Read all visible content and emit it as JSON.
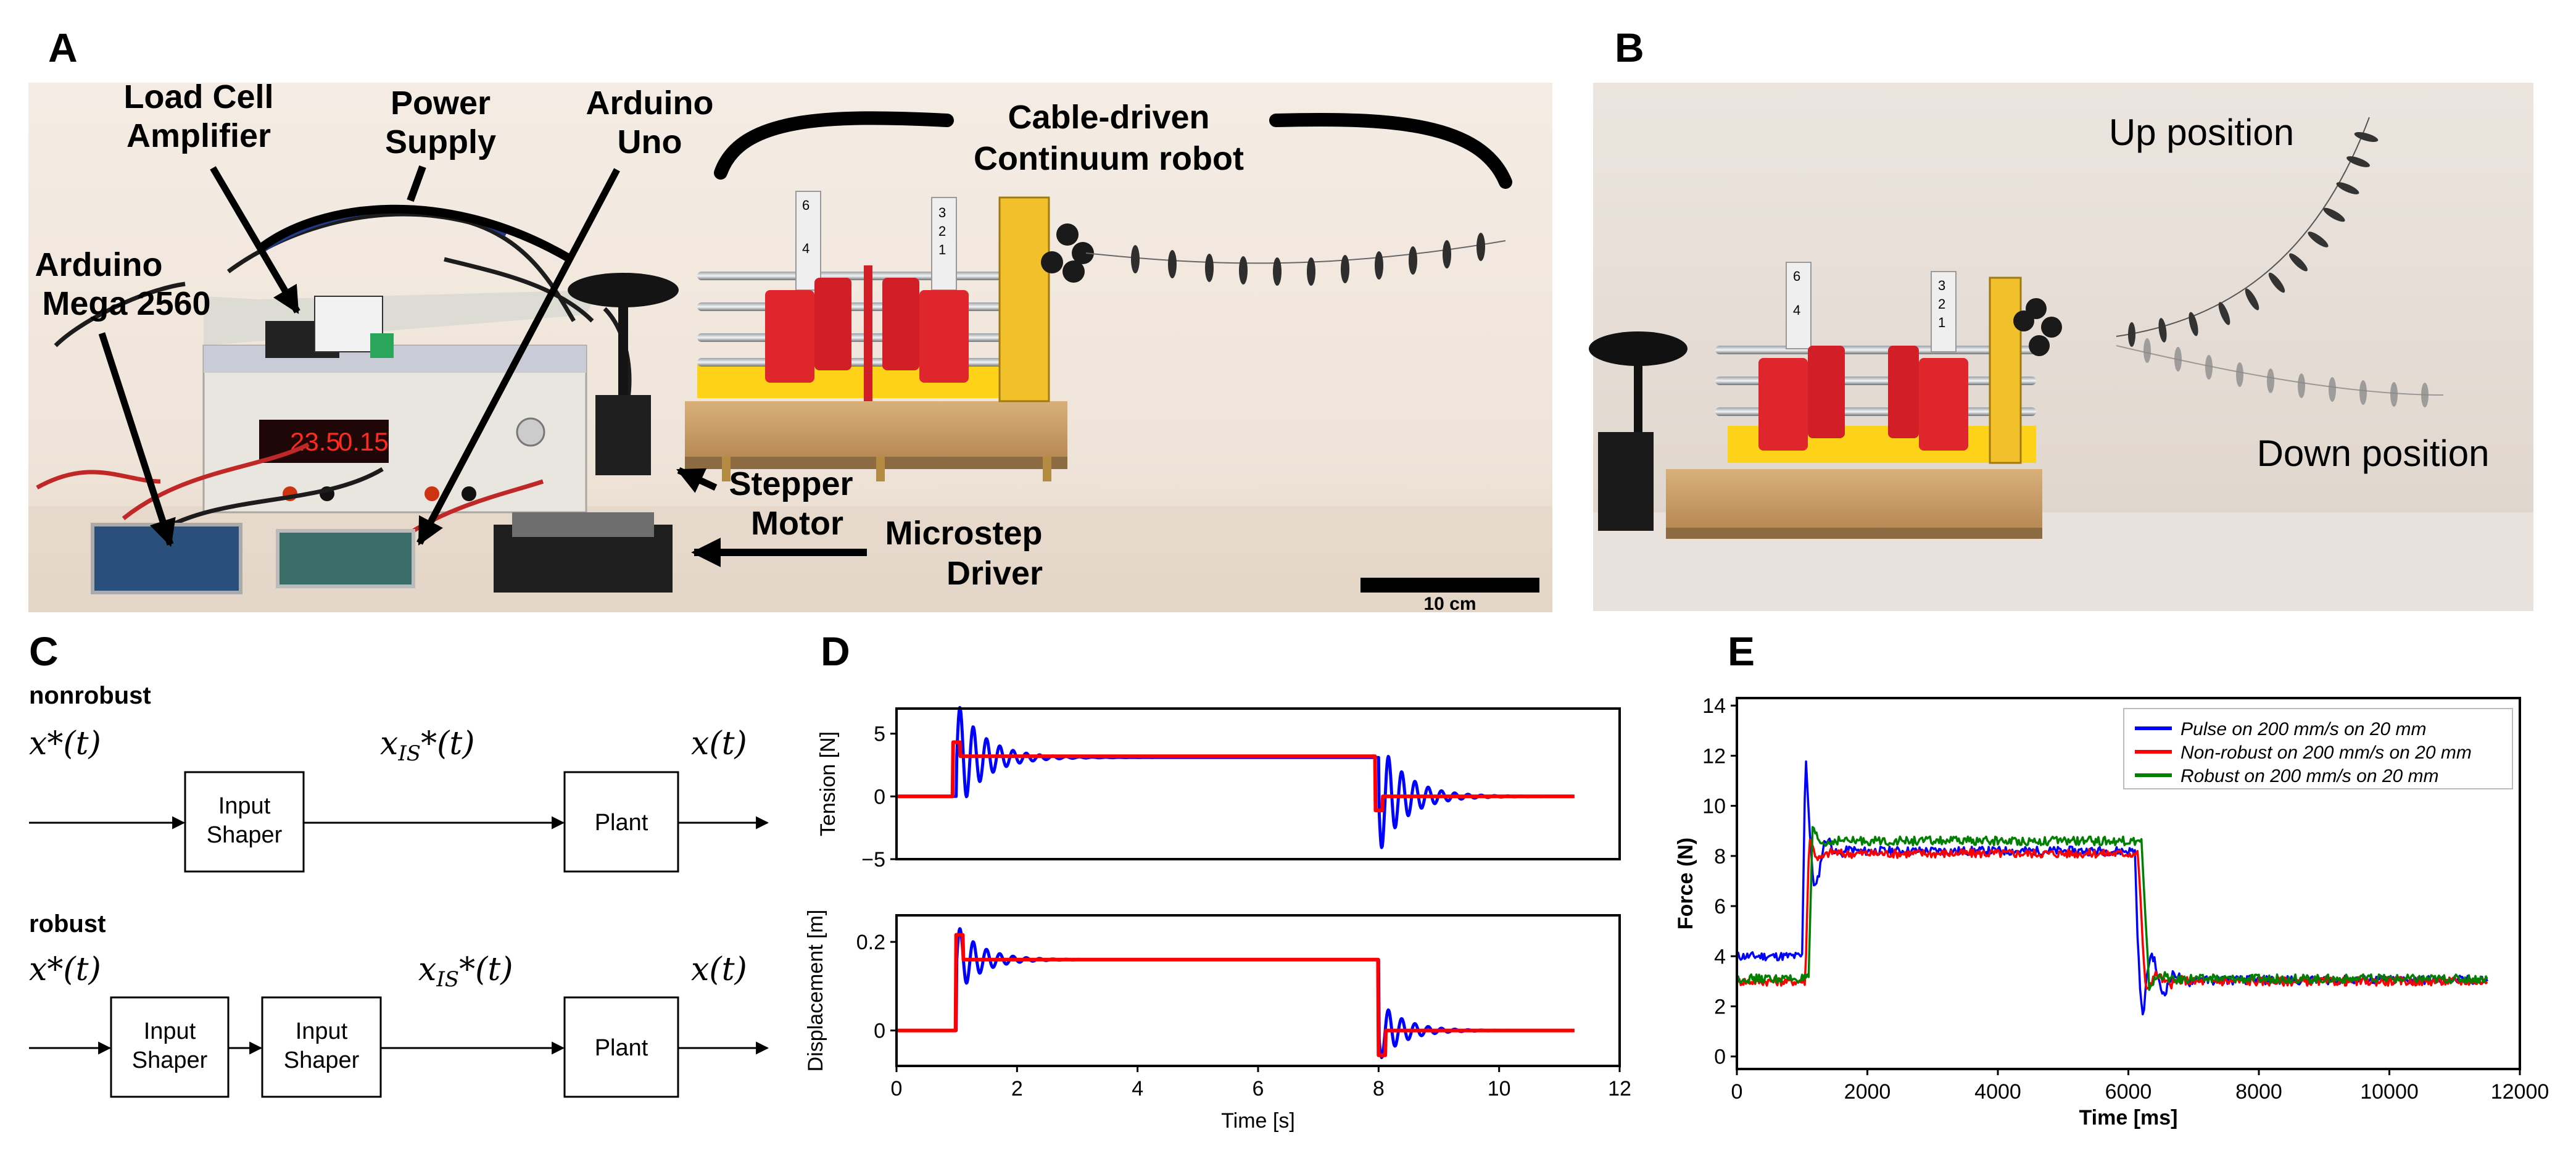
{
  "panels": {
    "A": {
      "letter": "A",
      "labels": {
        "load_cell": [
          "Load Cell",
          "Amplifier"
        ],
        "power_supply": [
          "Power",
          "Supply"
        ],
        "arduino_uno": [
          "Arduino",
          "Uno"
        ],
        "cable_robot": [
          "Cable-driven",
          "Continuum robot"
        ],
        "arduino_mega": [
          "Arduino",
          "Mega 2560"
        ],
        "stepper": [
          "Stepper",
          "Motor"
        ],
        "microstep": [
          "Microstep",
          "Driver"
        ],
        "scale": "10 cm"
      },
      "psu_display": [
        "23.5",
        "0.15"
      ],
      "tag_numbers": [
        "6",
        "4",
        "3",
        "2",
        "1"
      ]
    },
    "B": {
      "letter": "B",
      "up": "Up position",
      "down": "Down position",
      "tag_numbers": [
        "6",
        "4",
        "3",
        "2",
        "1"
      ]
    },
    "C": {
      "letter": "C",
      "nonrobust": {
        "title": "nonrobust",
        "in": "x*(t)",
        "mid": "x",
        "mid_sub": "IS",
        "mid_rest": "*(t)",
        "out": "x(t)",
        "shaper": [
          "Input",
          "Shaper"
        ],
        "plant": "Plant"
      },
      "robust": {
        "title": "robust",
        "in": "x*(t)",
        "mid": "x",
        "mid_sub": "IS",
        "mid_rest": "*(t)",
        "out": "x(t)",
        "shaper1": [
          "Input",
          "Shaper"
        ],
        "shaper2": [
          "Input",
          "Shaper"
        ],
        "plant": "Plant"
      }
    },
    "D": {
      "letter": "D"
    },
    "E": {
      "letter": "E"
    }
  },
  "chart_data": [
    {
      "type": "line",
      "panel": "D-top",
      "ylabel": "Tension [N]",
      "xlim": [
        0,
        12
      ],
      "ylim": [
        -5,
        7
      ],
      "yticks": [
        -5,
        0,
        5
      ],
      "series": [
        {
          "name": "",
          "color": "#0000ff",
          "kind": "oscillating",
          "base": 0,
          "level": 3.1,
          "step_up": 1.0,
          "step_down": 8.0,
          "end": 11.25,
          "amp_up": 4.5,
          "amp_down": 4.6,
          "period": 0.22,
          "tau": 0.45
        },
        {
          "name": "",
          "color": "#ff0000",
          "kind": "step",
          "base": 0,
          "level": 3.2,
          "step_up": 1.0,
          "step_down": 8.0,
          "end": 11.25
        }
      ]
    },
    {
      "type": "line",
      "panel": "D-bottom",
      "xlabel": "Time [s]",
      "ylabel": "Displacement [m]",
      "xlim": [
        0,
        12
      ],
      "ylim": [
        -0.08,
        0.26
      ],
      "xticks": [
        0,
        2,
        4,
        6,
        8,
        10,
        12
      ],
      "yticks": [
        0,
        0.2
      ],
      "series": [
        {
          "name": "",
          "color": "#0000ff",
          "kind": "oscillating",
          "base": 0,
          "level": 0.16,
          "step_up": 1.0,
          "step_down": 8.0,
          "end": 11.25,
          "amp_up": 0.08,
          "amp_down": 0.07,
          "period": 0.22,
          "tau": 0.4
        },
        {
          "name": "",
          "color": "#ff0000",
          "kind": "step",
          "base": 0,
          "level": 0.16,
          "step_up": 1.05,
          "step_down": 8.05,
          "end": 11.25
        }
      ]
    },
    {
      "type": "line",
      "panel": "E",
      "xlabel": "Time [ms]",
      "ylabel": "Force (N)",
      "xlim": [
        0,
        12000
      ],
      "ylim": [
        -0.5,
        14.3
      ],
      "xticks": [
        0,
        2000,
        4000,
        6000,
        8000,
        10000,
        12000
      ],
      "yticks": [
        0,
        2,
        4,
        6,
        8,
        10,
        12,
        14
      ],
      "legend_position": "top-right",
      "series": [
        {
          "name": "Pulse on 200 mm/s on 20 mm",
          "color": "#0000ff",
          "base": 4.0,
          "level": 8.2,
          "final": 3.05,
          "step_up": 1000,
          "step_down": 6100,
          "end": 11500,
          "peak_up": 13.6,
          "dip_up": 1.9,
          "peak_down": 0.3,
          "osc_period": 180
        },
        {
          "name": "Non-robust on 200 mm/s on 20 mm",
          "color": "#ff0000",
          "base": 3.0,
          "level": 8.1,
          "final": 3.0,
          "step_up": 1050,
          "step_down": 6150,
          "end": 11500,
          "peak_up": 9.0,
          "dip_up": 7.0,
          "peak_down": 2.2,
          "osc_period": 200
        },
        {
          "name": "Robust on 200 mm/s on 20 mm",
          "color": "#008000",
          "base": 3.1,
          "level": 8.6,
          "final": 3.1,
          "step_up": 1100,
          "step_down": 6200,
          "end": 11500,
          "peak_up": 9.2,
          "dip_up": 7.2,
          "peak_down": 2.6,
          "osc_period": 220
        }
      ]
    }
  ]
}
